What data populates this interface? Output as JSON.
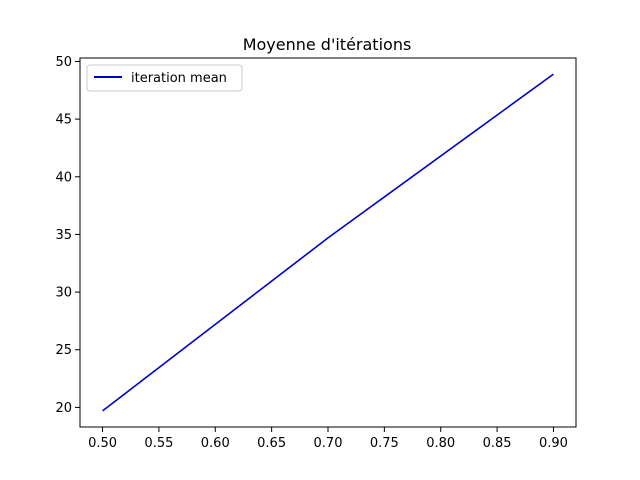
{
  "chart_data": {
    "type": "line",
    "title": "Moyenne d'itérations",
    "xlabel": "",
    "ylabel": "",
    "xlim": [
      0.48,
      0.92
    ],
    "ylim": [
      18.3,
      50.3
    ],
    "xticks": [
      0.5,
      0.55,
      0.6,
      0.65,
      0.7,
      0.75,
      0.8,
      0.85,
      0.9
    ],
    "xtick_labels": [
      "0.50",
      "0.55",
      "0.60",
      "0.65",
      "0.70",
      "0.75",
      "0.80",
      "0.85",
      "0.90"
    ],
    "yticks": [
      20,
      25,
      30,
      35,
      40,
      45,
      50
    ],
    "ytick_labels": [
      "20",
      "25",
      "30",
      "35",
      "40",
      "45",
      "50"
    ],
    "grid": false,
    "legend_position": "top-left",
    "series": [
      {
        "name": "iteration mean",
        "color": "#0000cc",
        "x": [
          0.5,
          0.7,
          0.9
        ],
        "y": [
          19.7,
          34.7,
          48.9
        ]
      }
    ]
  }
}
